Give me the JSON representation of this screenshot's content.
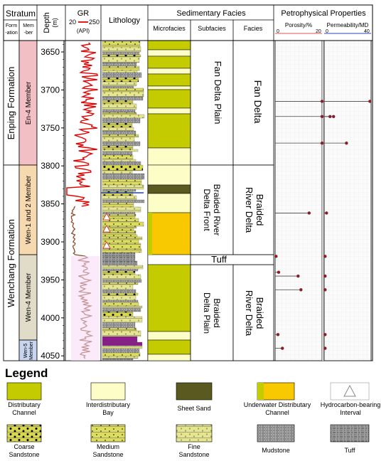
{
  "header": {
    "stratum": "Stratum",
    "formation": "Form\n-ation",
    "member": "Mem\n-ber",
    "depth": "Depth\n(m)",
    "gr": "GR",
    "gr_min": "20",
    "gr_max": "250",
    "gr_unit": "(API)",
    "lithology": "Lithology",
    "sedimentary_facies": "Sedimentary Facies",
    "microfacies": "Microfacies",
    "subfacies": "Subfacies",
    "facies": "Facies",
    "petrophysical": "Petrophysical Properties",
    "porosity": "Porosity/%",
    "porosity_min": "0",
    "porosity_max": "20",
    "permeability": "Permeability/MD",
    "permeability_min": "0",
    "permeability_max": "40"
  },
  "formations": [
    "Enping Formation",
    "Wenchang Formation"
  ],
  "members": [
    "En-4 Member",
    "Wen-1 and 2 Member",
    "Wen-4 Member",
    "Wen-5 Member"
  ],
  "depth_ticks": [
    "3650",
    "3700",
    "3750",
    "3800",
    "3850",
    "3900",
    "3950",
    "4000",
    "4050"
  ],
  "subfacies": [
    "Fan Delta Plain",
    "Braided River Delta Front",
    "Braided Delta Plain"
  ],
  "facies": [
    "Fan Delta",
    "Braided River Delta",
    "Braided River Delta"
  ],
  "tuff_label": "Tuff",
  "legend": {
    "title": "Legend",
    "items": [
      "Distributary Channel",
      "Interdistributary Bay",
      "Sheet Sand",
      "Underwater Distributary Channel",
      "Hydrocarbon-bearing Interval",
      "Coarse Sandstone",
      "Medium Sandstone",
      "Fine Sandstone",
      "Mudstone",
      "Tuff"
    ]
  },
  "colors": {
    "distributary_channel": "#c4cc00",
    "interdistributary_bay": "#fdfdc8",
    "sheet_sand": "#5a5a20",
    "underwater_channel": "#f8c800",
    "member_en4": "#f2c0c4",
    "member_wen12": "#f7d9b0",
    "member_wen4": "#e1dcc8",
    "member_wen5": "#c7d6ee",
    "gr_upper": "#e60000",
    "gr_lower": "#8b4a2a",
    "mudstone": "#8c8c8c"
  },
  "chart_data": {
    "type": "scatter",
    "y_axis": "Depth (m)",
    "depth_range": [
      3625,
      4055
    ],
    "porosity": {
      "xlim": [
        0,
        20
      ],
      "points": [
        {
          "depth": 3715,
          "value": 20.0
        },
        {
          "depth": 3735,
          "value": 20.0
        },
        {
          "depth": 3770,
          "value": 20.0
        },
        {
          "depth": 3862,
          "value": 14.5
        },
        {
          "depth": 3919,
          "value": 0.4
        },
        {
          "depth": 3940,
          "value": 1.5
        },
        {
          "depth": 3945,
          "value": 9.8
        },
        {
          "depth": 3963,
          "value": 11.0
        },
        {
          "depth": 4022,
          "value": 1.2
        },
        {
          "depth": 4040,
          "value": 3.1
        }
      ]
    },
    "permeability": {
      "xlim": [
        0,
        40
      ],
      "points": [
        {
          "depth": 3715,
          "value": 39.0
        },
        {
          "depth": 3735,
          "value": 5.0
        },
        {
          "depth": 3735,
          "value": 8.0
        },
        {
          "depth": 3770,
          "value": 19.0
        },
        {
          "depth": 3862,
          "value": 2.0
        },
        {
          "depth": 3919,
          "value": 0.8
        },
        {
          "depth": 3945,
          "value": 0.8
        },
        {
          "depth": 3963,
          "value": 0.8
        },
        {
          "depth": 4022,
          "value": 0.8
        },
        {
          "depth": 4040,
          "value": 0.8
        }
      ]
    }
  }
}
